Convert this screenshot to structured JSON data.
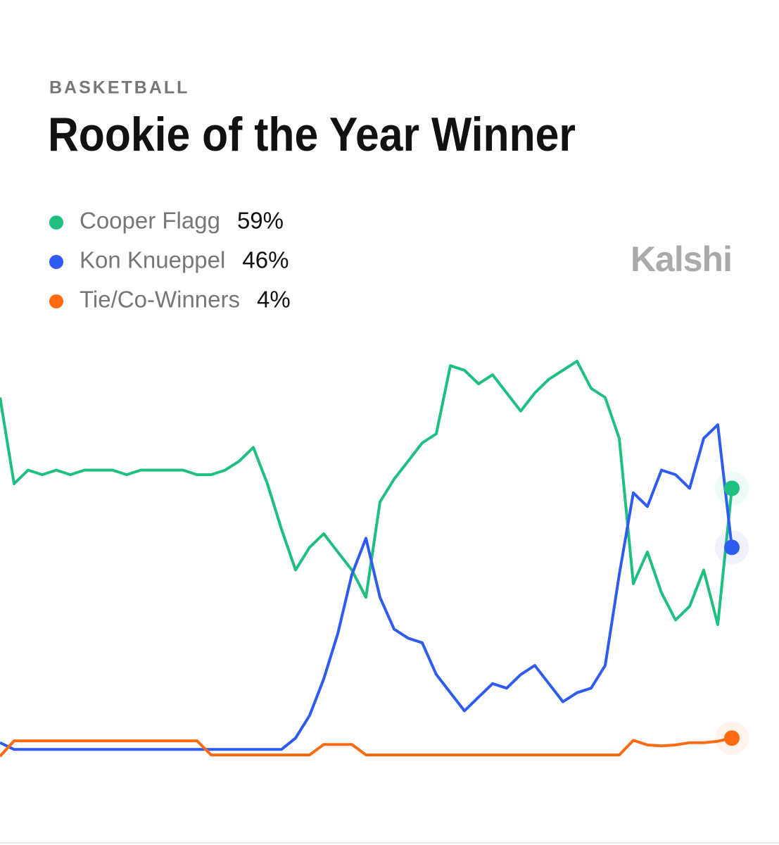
{
  "chart_data": {
    "type": "line",
    "kicker": "BASKETBALL",
    "title": "Rookie of the Year Winner",
    "brand": "Kalshi",
    "ylim": [
      0,
      100
    ],
    "series": [
      {
        "name": "Cooper Flagg",
        "label": "59%",
        "color": "#1fbf82",
        "values": [
          79,
          60,
          63,
          62,
          63,
          62,
          63,
          63,
          63,
          62,
          63,
          63,
          63,
          63,
          62,
          62,
          63,
          65,
          68,
          60,
          50,
          41,
          46,
          49,
          45,
          41,
          35,
          56,
          61,
          65,
          69,
          71,
          86,
          85,
          82,
          84,
          80,
          76,
          80,
          83,
          85,
          87,
          81,
          79,
          70,
          38,
          45,
          36,
          30,
          33,
          41,
          29,
          59
        ]
      },
      {
        "name": "Kon Knueppel",
        "label": "46%",
        "color": "#2f5cf0",
        "values": [
          3,
          1.5,
          1.5,
          1.5,
          1.5,
          1.5,
          1.5,
          1.5,
          1.5,
          1.5,
          1.5,
          1.5,
          1.5,
          1.5,
          1.5,
          1.5,
          1.5,
          1.5,
          1.5,
          1.5,
          1.5,
          4,
          9,
          17,
          27,
          40,
          48,
          35,
          28,
          26,
          25,
          18,
          14,
          10,
          13,
          16,
          15,
          18,
          20,
          16,
          12,
          14,
          15,
          20,
          40,
          58,
          55,
          63,
          62,
          59,
          70,
          73,
          46
        ]
      },
      {
        "name": "Tie/Co-Winners",
        "label": "4%",
        "color": "#ff6a13",
        "values": [
          0,
          3.4,
          3.4,
          3.4,
          3.4,
          3.4,
          3.4,
          3.4,
          3.4,
          3.4,
          3.4,
          3.4,
          3.4,
          3.4,
          3.4,
          0.3,
          0.3,
          0.3,
          0.3,
          0.3,
          0.3,
          0.3,
          0.3,
          2.6,
          2.6,
          2.6,
          0.3,
          0.3,
          0.3,
          0.3,
          0.3,
          0.3,
          0.3,
          0.3,
          0.3,
          0.3,
          0.3,
          0.3,
          0.3,
          0.3,
          0.3,
          0.3,
          0.3,
          0.3,
          0.3,
          3.5,
          2.5,
          2.3,
          2.5,
          3,
          3,
          3.3,
          4
        ]
      }
    ]
  }
}
